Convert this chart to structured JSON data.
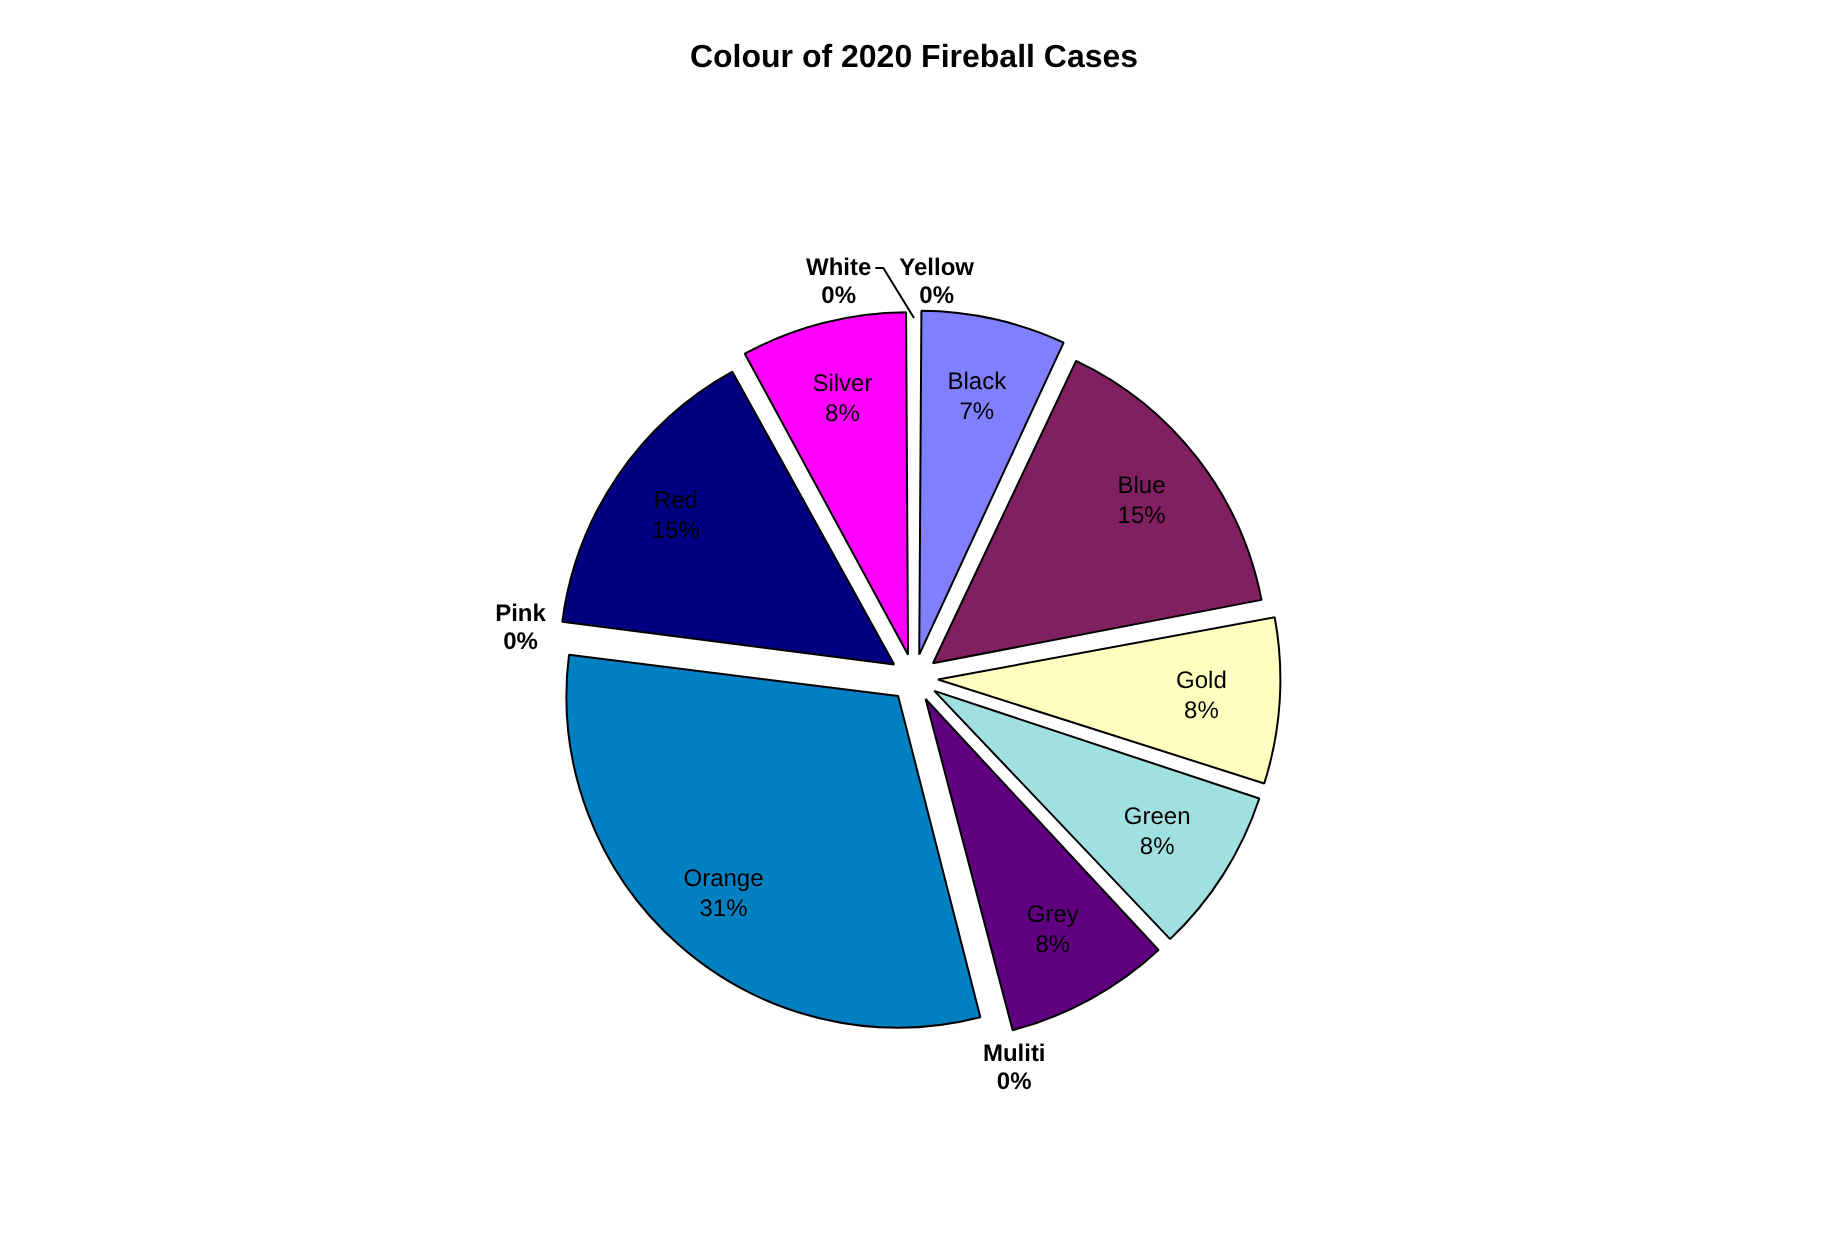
{
  "chart_data": {
    "type": "pie",
    "title": "Colour of 2020 Fireball Cases",
    "categories": [
      "Black",
      "Blue",
      "Gold",
      "Green",
      "Grey",
      "Muliti",
      "Orange",
      "Pink",
      "Red",
      "Silver",
      "White",
      "Yellow"
    ],
    "values": [
      7,
      15,
      8,
      8,
      8,
      0,
      31,
      0,
      15,
      8,
      0,
      0
    ],
    "colors": [
      "#8080ff",
      "#802060",
      "#ffffc0",
      "#a0e0e0",
      "#600080",
      "#ff8080",
      "#0080c0",
      "#c0c0ff",
      "#000080",
      "#ff00ff",
      "#ffff00",
      "#00ffff"
    ],
    "value_labels": [
      "7%",
      "15%",
      "8%",
      "8%",
      "8%",
      "0%",
      "31%",
      "0%",
      "15%",
      "8%",
      "0%",
      "0%"
    ]
  }
}
